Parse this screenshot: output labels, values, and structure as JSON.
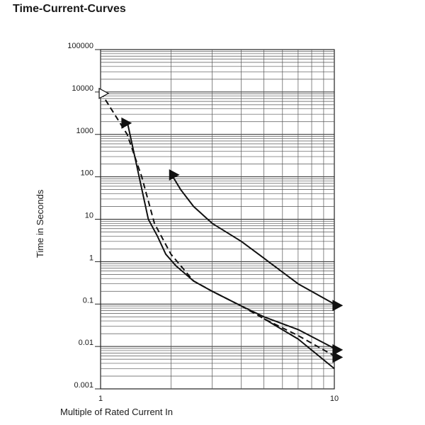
{
  "page": {
    "title": "Time-Current-Curves"
  },
  "chart_data": {
    "type": "line",
    "title": "Time-Current-Curves",
    "xlabel": "Multiple of Rated Current In",
    "ylabel": "Time in Seconds",
    "x_scale": "log",
    "y_scale": "log",
    "xlim": [
      1,
      10
    ],
    "ylim": [
      0.001,
      100000
    ],
    "x_ticks": [
      {
        "value": 1,
        "label": "1"
      },
      {
        "value": 10,
        "label": "10"
      }
    ],
    "y_ticks": [
      {
        "value": 100000,
        "label": "100000"
      },
      {
        "value": 10000,
        "label": "10000"
      },
      {
        "value": 1000,
        "label": "1000"
      },
      {
        "value": 100,
        "label": "100"
      },
      {
        "value": 10,
        "label": "10"
      },
      {
        "value": 1,
        "label": "1"
      },
      {
        "value": 0.1,
        "label": "0.1"
      },
      {
        "value": 0.01,
        "label": "0.01"
      },
      {
        "value": 0.001,
        "label": "0.001"
      }
    ],
    "grid": true,
    "series": [
      {
        "style": "solid",
        "points": [
          [
            1.3,
            2000
          ],
          [
            1.6,
            10
          ],
          [
            1.75,
            4
          ],
          [
            1.9,
            1.5
          ],
          [
            2.1,
            0.8
          ],
          [
            2.5,
            0.35
          ],
          [
            3,
            0.2
          ],
          [
            4,
            0.09
          ],
          [
            5,
            0.05
          ],
          [
            7,
            0.025
          ],
          [
            10,
            0.009
          ]
        ]
      },
      {
        "style": "dashed",
        "points": [
          [
            1,
            10000
          ],
          [
            1.3,
            1000
          ],
          [
            1.5,
            100
          ],
          [
            1.7,
            8
          ],
          [
            2,
            1.5
          ],
          [
            2.5,
            0.35
          ],
          [
            3,
            0.2
          ],
          [
            4,
            0.09
          ],
          [
            5,
            0.045
          ],
          [
            7,
            0.018
          ],
          [
            10,
            0.006
          ]
        ]
      },
      {
        "style": "solid",
        "points": [
          [
            2,
            120
          ],
          [
            2.2,
            50
          ],
          [
            2.5,
            20
          ],
          [
            3,
            8
          ],
          [
            4,
            3
          ],
          [
            5,
            1.2
          ],
          [
            7,
            0.3
          ],
          [
            10,
            0.1
          ]
        ]
      },
      {
        "style": "solid",
        "points": [
          [
            5,
            0.045
          ],
          [
            7,
            0.015
          ],
          [
            10,
            0.003
          ]
        ]
      }
    ],
    "markers": [
      {
        "kind": "filled-triangle",
        "x": 1.25,
        "y": 2000
      },
      {
        "kind": "outline-triangle",
        "x": 1,
        "y": 10000
      },
      {
        "kind": "filled-triangle",
        "x": 2,
        "y": 120
      },
      {
        "kind": "filled-triangle",
        "x": 10,
        "y": 0.1
      },
      {
        "kind": "filled-triangle",
        "x": 10,
        "y": 0.009
      },
      {
        "kind": "filled-triangle",
        "x": 10,
        "y": 0.006
      }
    ]
  }
}
